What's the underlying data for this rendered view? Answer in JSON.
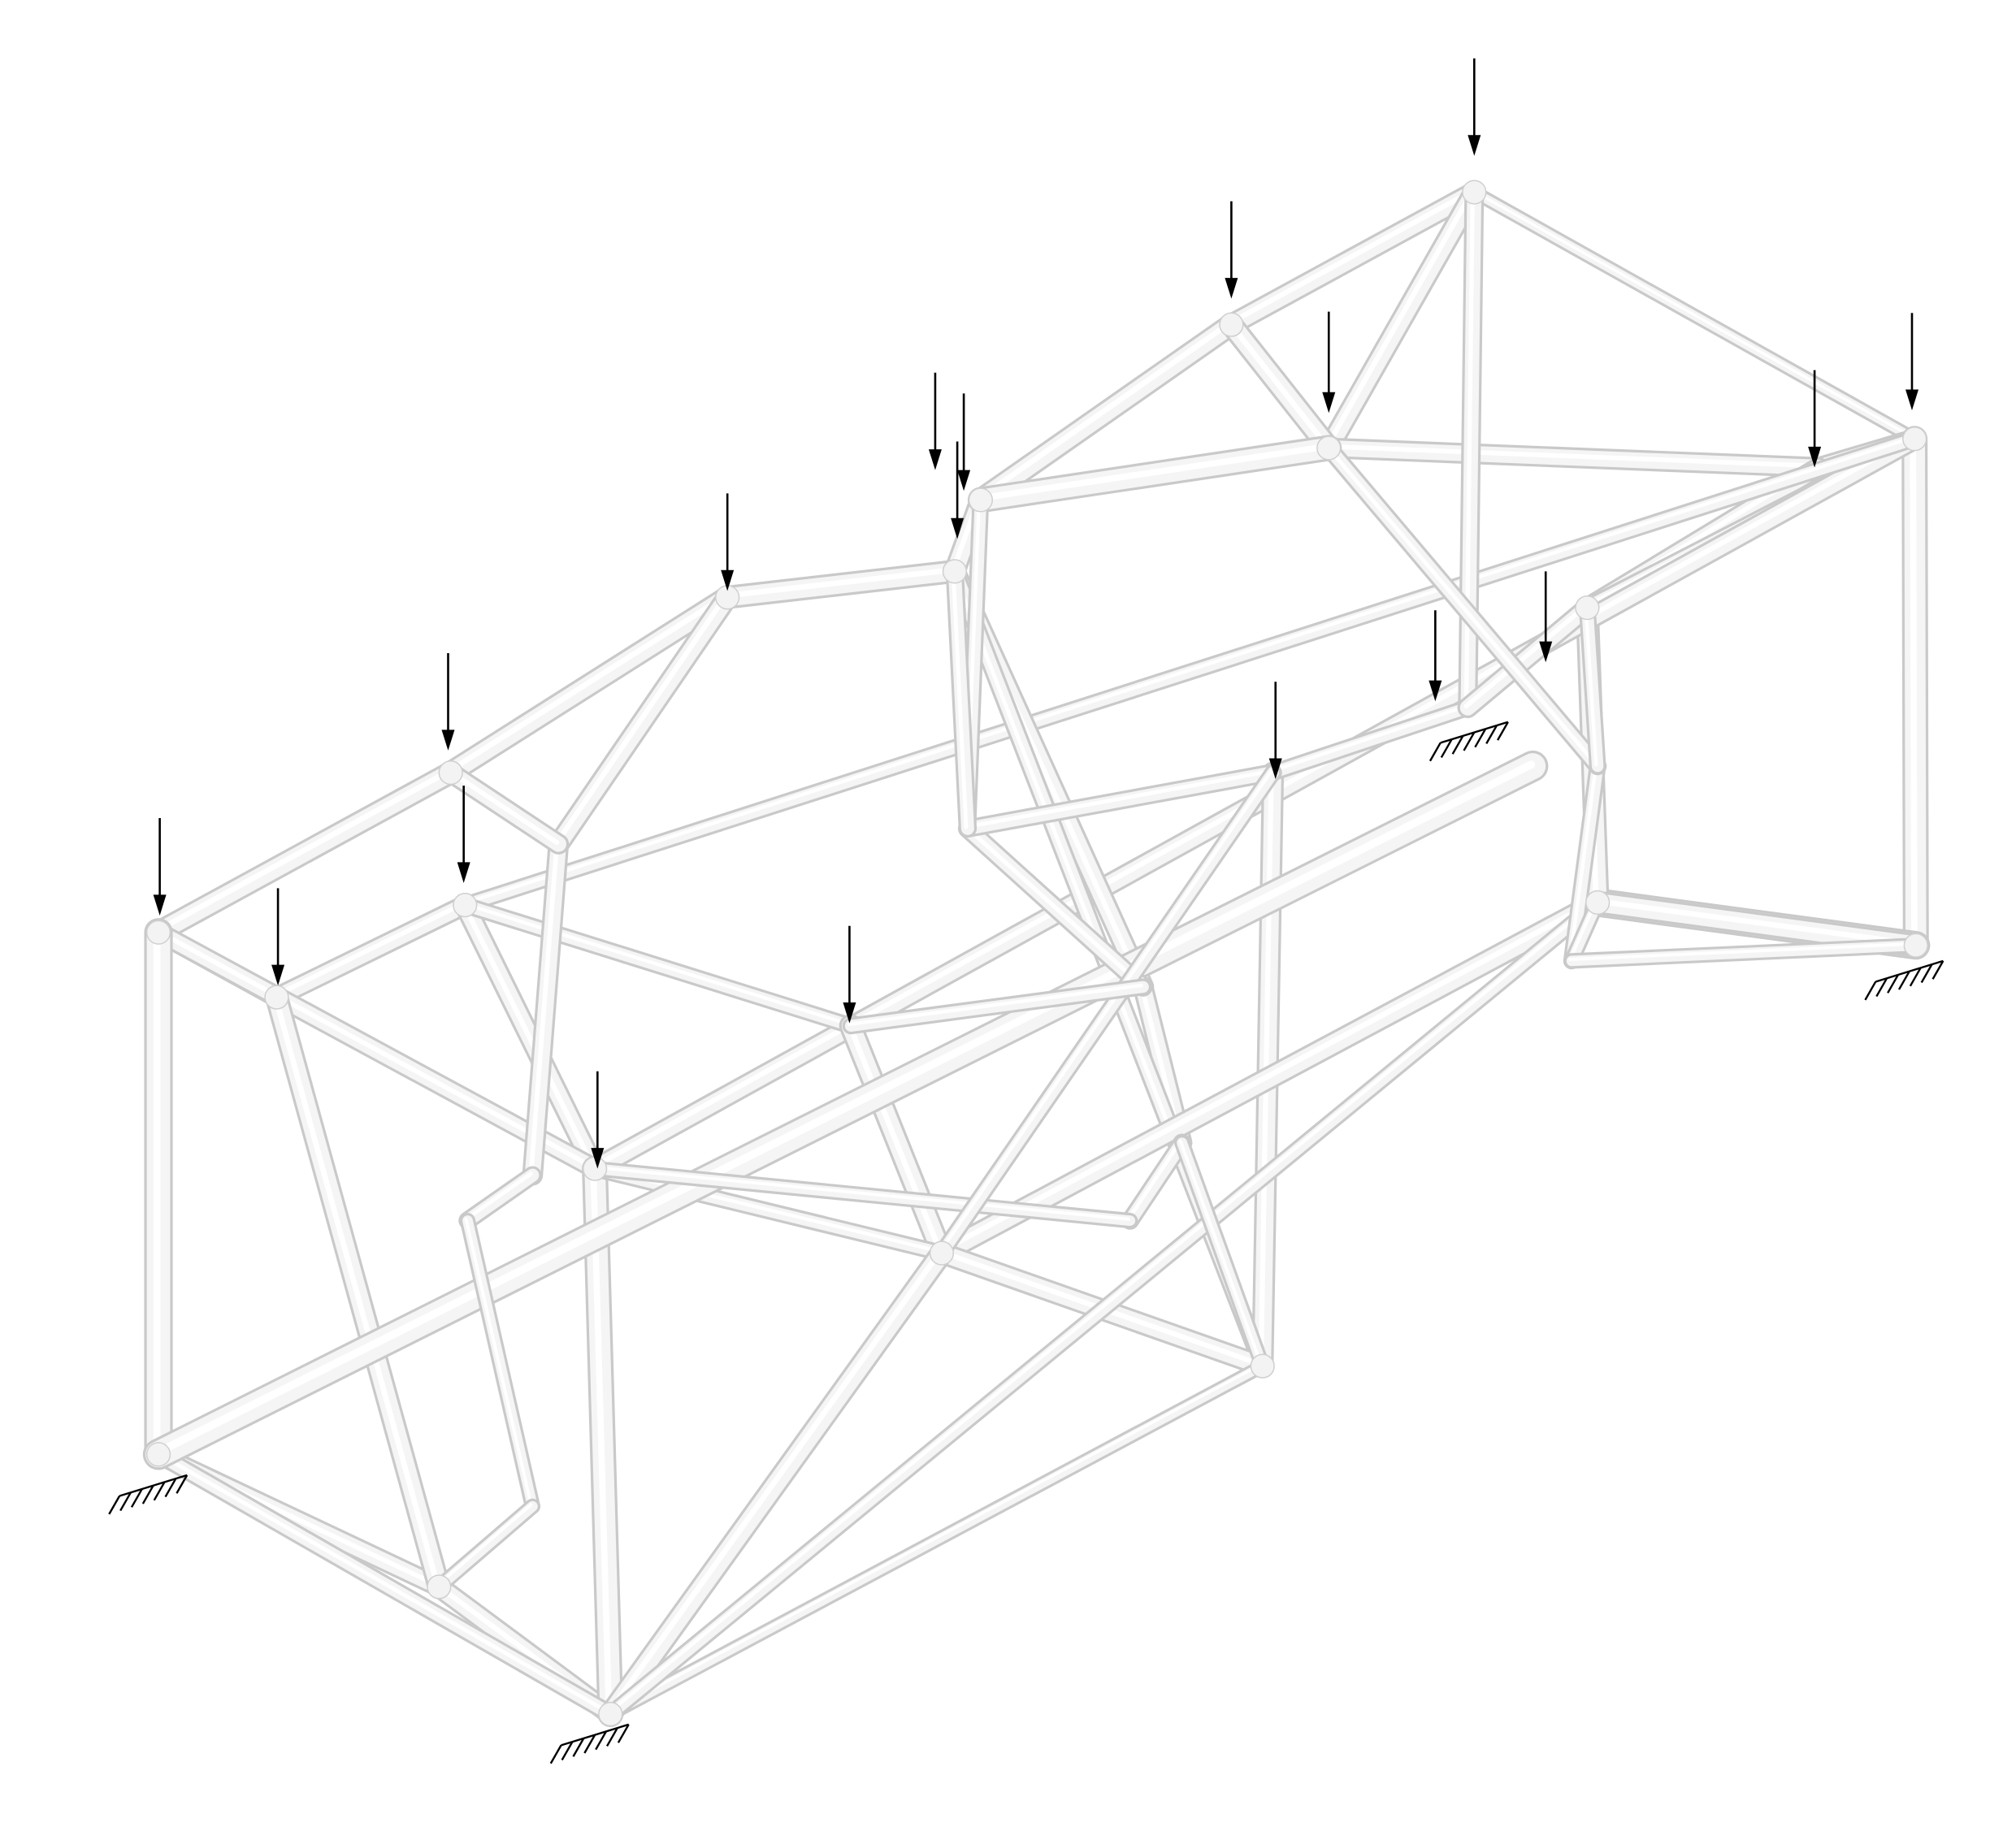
{
  "figure": {
    "type": "3d-truss-topology-optimization",
    "background": "#ffffff",
    "member_color": "#f5f5f5",
    "load_arrow_color": "#000000",
    "support_symbol_color": "#000000",
    "load_count": 18,
    "support_count": 4,
    "icons": {
      "load": "downward-load-arrow-icon",
      "support": "pinned-support-hatch-icon"
    }
  }
}
